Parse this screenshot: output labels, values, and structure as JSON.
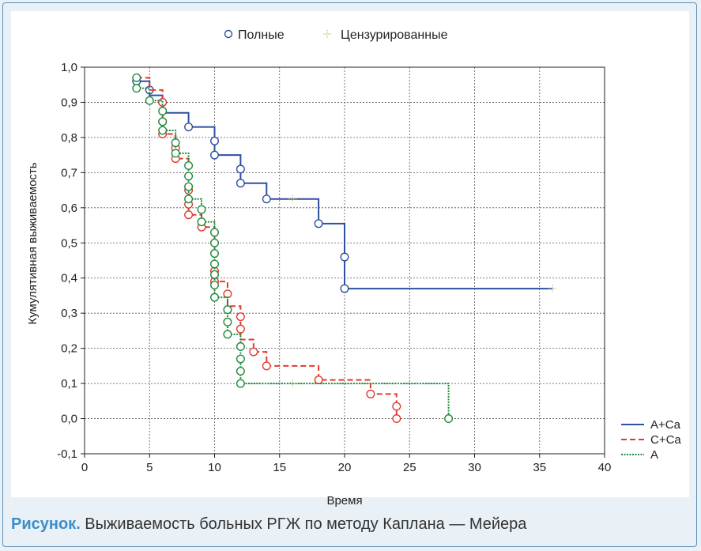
{
  "caption": {
    "label": "Рисунок.",
    "text": " Выживаемость больных РГЖ по методу Каплана — Мейера"
  },
  "legend_markers": {
    "complete": "Полные",
    "censored": "Цензурированные"
  },
  "chart_data": {
    "type": "line",
    "subtype": "kaplan-meier step survival curves",
    "xlabel": "Время",
    "ylabel": "Кумулятивная выживаемость",
    "xlim": [
      0,
      40
    ],
    "ylim": [
      -0.1,
      1.0
    ],
    "xticks": [
      0,
      5,
      10,
      15,
      20,
      25,
      30,
      35,
      40
    ],
    "xtick_labels": [
      "0",
      "5",
      "10",
      "15",
      "20",
      "25",
      "30",
      "35",
      "40"
    ],
    "yticks": [
      -0.1,
      0.0,
      0.1,
      0.2,
      0.3,
      0.4,
      0.5,
      0.6,
      0.7,
      0.8,
      0.9,
      1.0
    ],
    "ytick_labels": [
      "-0,1",
      "0,0",
      "0,1",
      "0,2",
      "0,3",
      "0,4",
      "0,5",
      "0,6",
      "0,7",
      "0,8",
      "0,9",
      "1,0"
    ],
    "grid": true,
    "legend_position": "bottom-right",
    "series": [
      {
        "name": "A+Ca",
        "color": "#2f4fa0",
        "dash": "solid",
        "steps": [
          [
            4,
            0.96
          ],
          [
            5,
            0.92
          ],
          [
            6,
            0.87
          ],
          [
            8,
            0.83
          ],
          [
            10,
            0.75
          ],
          [
            12,
            0.67
          ],
          [
            14,
            0.625
          ],
          [
            18,
            0.555
          ],
          [
            20,
            0.37
          ],
          [
            36,
            0.37
          ]
        ],
        "events": [
          [
            4,
            0.96
          ],
          [
            5,
            0.935
          ],
          [
            6,
            0.9
          ],
          [
            8,
            0.83
          ],
          [
            10,
            0.79
          ],
          [
            10,
            0.75
          ],
          [
            12,
            0.71
          ],
          [
            12,
            0.67
          ],
          [
            14,
            0.625
          ],
          [
            18,
            0.555
          ],
          [
            20,
            0.46
          ],
          [
            20,
            0.37
          ]
        ],
        "censored": [
          [
            16,
            0.625
          ],
          [
            36,
            0.37
          ]
        ]
      },
      {
        "name": "C+Ca",
        "color": "#e23a2e",
        "dash": "dashed",
        "steps": [
          [
            4,
            0.97
          ],
          [
            5,
            0.935
          ],
          [
            6,
            0.81
          ],
          [
            7,
            0.74
          ],
          [
            8,
            0.58
          ],
          [
            9,
            0.545
          ],
          [
            10,
            0.39
          ],
          [
            11,
            0.32
          ],
          [
            12,
            0.225
          ],
          [
            13,
            0.19
          ],
          [
            14,
            0.15
          ],
          [
            18,
            0.11
          ],
          [
            22,
            0.07
          ],
          [
            24,
            0.0
          ]
        ],
        "events": [
          [
            6,
            0.9
          ],
          [
            6,
            0.845
          ],
          [
            6,
            0.81
          ],
          [
            7,
            0.77
          ],
          [
            7,
            0.74
          ],
          [
            8,
            0.65
          ],
          [
            8,
            0.61
          ],
          [
            8,
            0.58
          ],
          [
            9,
            0.545
          ],
          [
            10,
            0.42
          ],
          [
            10,
            0.39
          ],
          [
            11,
            0.355
          ],
          [
            12,
            0.29
          ],
          [
            12,
            0.255
          ],
          [
            13,
            0.19
          ],
          [
            14,
            0.15
          ],
          [
            18,
            0.11
          ],
          [
            22,
            0.07
          ],
          [
            24,
            0.035
          ],
          [
            24,
            0.0
          ]
        ]
      },
      {
        "name": "A",
        "color": "#1f8a3a",
        "dash": "dotted",
        "steps": [
          [
            4,
            0.94
          ],
          [
            5,
            0.905
          ],
          [
            6,
            0.82
          ],
          [
            7,
            0.755
          ],
          [
            8,
            0.625
          ],
          [
            9,
            0.56
          ],
          [
            10,
            0.345
          ],
          [
            11,
            0.24
          ],
          [
            12,
            0.1
          ],
          [
            28,
            0.0
          ]
        ],
        "events": [
          [
            4,
            0.97
          ],
          [
            4,
            0.94
          ],
          [
            5,
            0.905
          ],
          [
            6,
            0.875
          ],
          [
            6,
            0.845
          ],
          [
            6,
            0.82
          ],
          [
            7,
            0.785
          ],
          [
            7,
            0.755
          ],
          [
            8,
            0.72
          ],
          [
            8,
            0.69
          ],
          [
            8,
            0.66
          ],
          [
            8,
            0.625
          ],
          [
            9,
            0.595
          ],
          [
            9,
            0.56
          ],
          [
            10,
            0.53
          ],
          [
            10,
            0.5
          ],
          [
            10,
            0.47
          ],
          [
            10,
            0.44
          ],
          [
            10,
            0.41
          ],
          [
            10,
            0.38
          ],
          [
            10,
            0.345
          ],
          [
            11,
            0.31
          ],
          [
            11,
            0.275
          ],
          [
            11,
            0.24
          ],
          [
            12,
            0.205
          ],
          [
            12,
            0.17
          ],
          [
            12,
            0.135
          ],
          [
            12,
            0.1
          ],
          [
            28,
            0.0
          ]
        ],
        "censored": [
          [
            16,
            0.1
          ]
        ]
      }
    ]
  }
}
